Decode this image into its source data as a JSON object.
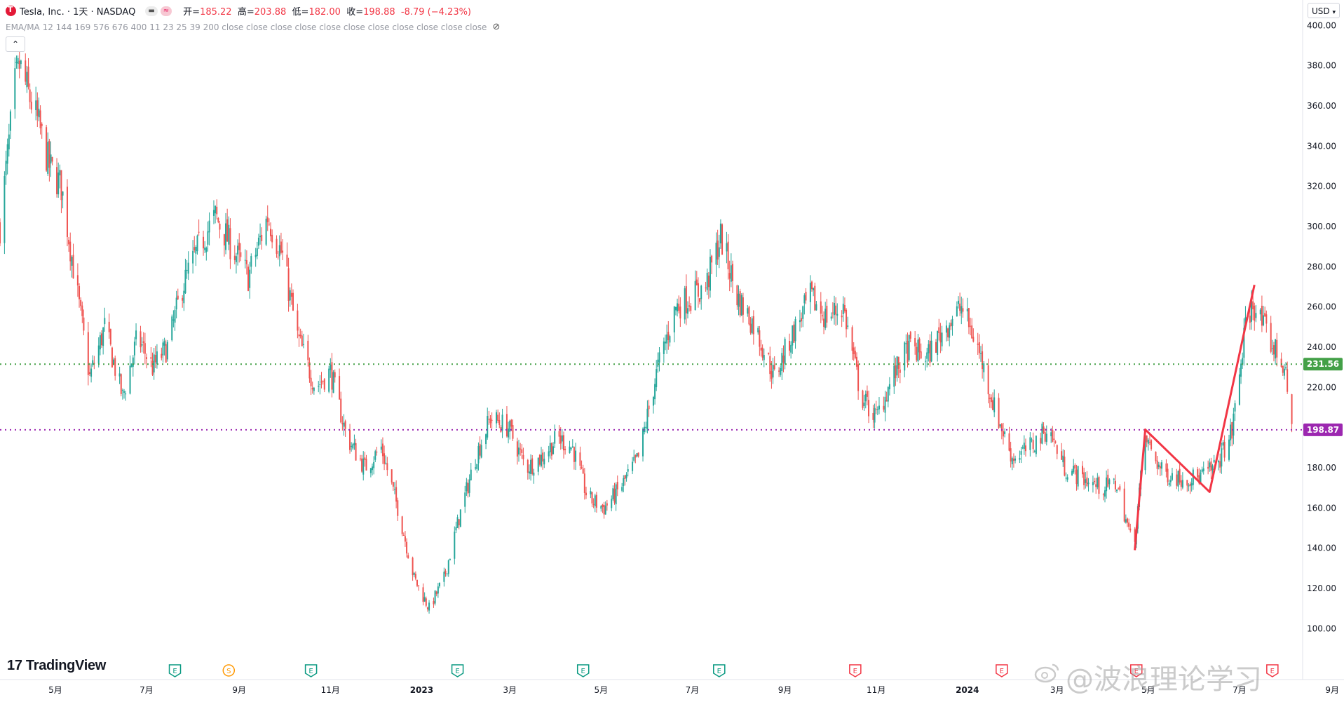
{
  "header": {
    "title": "Tesla, Inc. · 1天 · NASDAQ",
    "open_label": "开",
    "open": "185.22",
    "high_label": "高",
    "high": "203.88",
    "low_label": "低",
    "low": "182.00",
    "close_label": "收",
    "close": "198.88",
    "change": "-8.79 (−4.23%)"
  },
  "indicator": {
    "text": "EMA/MA 12 144 169 576 676 400 11 23 25 39 200 close close close close close close close close close close close"
  },
  "currency": "USD",
  "branding": {
    "logo_text": "TradingView",
    "watermark": "@波浪理论学习"
  },
  "colors": {
    "up": "#26a69a",
    "down": "#ef5350",
    "green_line": "#43a047",
    "purple_line": "#9c27b0",
    "red_drawing": "#f23645"
  },
  "chart_data": {
    "type": "candlestick",
    "symbol": "TSLA",
    "y_axis": {
      "min": 90,
      "max": 405,
      "ticks": [
        100,
        120,
        140,
        160,
        180,
        200,
        220,
        240,
        260,
        280,
        300,
        320,
        340,
        360,
        380,
        400
      ],
      "tick_labels": [
        "100.00",
        "120.00",
        "140.00",
        "160.00",
        "180.00",
        "200.00",
        "220.00",
        "240.00",
        "260.00",
        "280.00",
        "300.00",
        "320.00",
        "340.00",
        "360.00",
        "380.00",
        "400.00"
      ]
    },
    "x_axis": {
      "labels": [
        "5月",
        "7月",
        "9月",
        "11月",
        "2023",
        "3月",
        "5月",
        "7月",
        "9月",
        "11月",
        "2024",
        "3月",
        "5月",
        "7月",
        "9月"
      ],
      "label_dates": [
        "2022-05-01",
        "2022-07-01",
        "2022-09-01",
        "2022-11-01",
        "2023-01-01",
        "2023-03-01",
        "2023-05-01",
        "2023-07-01",
        "2023-09-01",
        "2023-11-01",
        "2024-01-01",
        "2024-03-01",
        "2024-05-01",
        "2024-07-01",
        "2024-09-01"
      ]
    },
    "price_path": [
      [
        "2022-03-25",
        300
      ],
      [
        "2022-04-04",
        370
      ],
      [
        "2022-04-07",
        380
      ],
      [
        "2022-04-20",
        350
      ],
      [
        "2022-04-27",
        330
      ],
      [
        "2022-05-05",
        320
      ],
      [
        "2022-05-15",
        270
      ],
      [
        "2022-05-24",
        225
      ],
      [
        "2022-06-03",
        250
      ],
      [
        "2022-06-15",
        215
      ],
      [
        "2022-06-25",
        245
      ],
      [
        "2022-07-05",
        230
      ],
      [
        "2022-07-15",
        240
      ],
      [
        "2022-07-25",
        270
      ],
      [
        "2022-08-05",
        290
      ],
      [
        "2022-08-16",
        305
      ],
      [
        "2022-08-27",
        290
      ],
      [
        "2022-09-07",
        275
      ],
      [
        "2022-09-20",
        305
      ],
      [
        "2022-09-30",
        285
      ],
      [
        "2022-10-10",
        245
      ],
      [
        "2022-10-22",
        220
      ],
      [
        "2022-11-01",
        228
      ],
      [
        "2022-11-12",
        195
      ],
      [
        "2022-11-24",
        180
      ],
      [
        "2022-12-05",
        190
      ],
      [
        "2022-12-16",
        160
      ],
      [
        "2022-12-27",
        125
      ],
      [
        "2023-01-06",
        110
      ],
      [
        "2023-01-16",
        125
      ],
      [
        "2023-01-26",
        155
      ],
      [
        "2023-02-06",
        185
      ],
      [
        "2023-02-16",
        205
      ],
      [
        "2023-02-28",
        200
      ],
      [
        "2023-03-12",
        180
      ],
      [
        "2023-03-22",
        185
      ],
      [
        "2023-04-02",
        195
      ],
      [
        "2023-04-12",
        190
      ],
      [
        "2023-04-22",
        165
      ],
      [
        "2023-05-03",
        160
      ],
      [
        "2023-05-14",
        170
      ],
      [
        "2023-05-26",
        185
      ],
      [
        "2023-06-08",
        230
      ],
      [
        "2023-06-20",
        260
      ],
      [
        "2023-06-30",
        265
      ],
      [
        "2023-07-10",
        270
      ],
      [
        "2023-07-20",
        295
      ],
      [
        "2023-07-31",
        265
      ],
      [
        "2023-08-12",
        250
      ],
      [
        "2023-08-25",
        225
      ],
      [
        "2023-09-05",
        245
      ],
      [
        "2023-09-18",
        265
      ],
      [
        "2023-09-28",
        255
      ],
      [
        "2023-10-10",
        260
      ],
      [
        "2023-10-22",
        215
      ],
      [
        "2023-11-01",
        205
      ],
      [
        "2023-11-12",
        225
      ],
      [
        "2023-11-23",
        240
      ],
      [
        "2023-12-05",
        235
      ],
      [
        "2023-12-17",
        250
      ],
      [
        "2023-12-28",
        260
      ],
      [
        "2024-01-08",
        240
      ],
      [
        "2024-01-19",
        210
      ],
      [
        "2024-01-31",
        185
      ],
      [
        "2024-02-12",
        190
      ],
      [
        "2024-02-24",
        200
      ],
      [
        "2024-03-06",
        180
      ],
      [
        "2024-03-18",
        175
      ],
      [
        "2024-03-30",
        170
      ],
      [
        "2024-04-10",
        172
      ],
      [
        "2024-04-21",
        140
      ],
      [
        "2024-04-29",
        195
      ],
      [
        "2024-05-10",
        178
      ],
      [
        "2024-05-22",
        175
      ],
      [
        "2024-06-03",
        175
      ],
      [
        "2024-06-15",
        180
      ],
      [
        "2024-06-26",
        198
      ],
      [
        "2024-07-05",
        250
      ],
      [
        "2024-07-10",
        262
      ],
      [
        "2024-07-20",
        245
      ],
      [
        "2024-07-31",
        230
      ],
      [
        "2024-08-05",
        198.88
      ]
    ],
    "horizontal_levels": [
      {
        "value": 231.56,
        "label": "231.56",
        "style": "dotted",
        "color": "#43a047"
      },
      {
        "value": 198.87,
        "label": "198.87",
        "style": "dotted",
        "color": "#9c27b0"
      }
    ],
    "drawn_zigzag": [
      [
        "2024-04-22",
        139
      ],
      [
        "2024-04-29",
        199
      ],
      [
        "2024-06-11",
        168
      ],
      [
        "2024-07-11",
        271
      ]
    ],
    "event_markers": [
      {
        "date": "2022-07-20",
        "type": "E"
      },
      {
        "date": "2022-08-25",
        "type": "S"
      },
      {
        "date": "2022-10-19",
        "type": "E"
      },
      {
        "date": "2023-01-25",
        "type": "E"
      },
      {
        "date": "2023-04-19",
        "type": "E"
      },
      {
        "date": "2023-07-19",
        "type": "E"
      },
      {
        "date": "2023-10-18",
        "type": "E"
      },
      {
        "date": "2024-01-24",
        "type": "E"
      },
      {
        "date": "2024-04-23",
        "type": "E"
      },
      {
        "date": "2024-07-23",
        "type": "E"
      }
    ],
    "grid": false
  }
}
